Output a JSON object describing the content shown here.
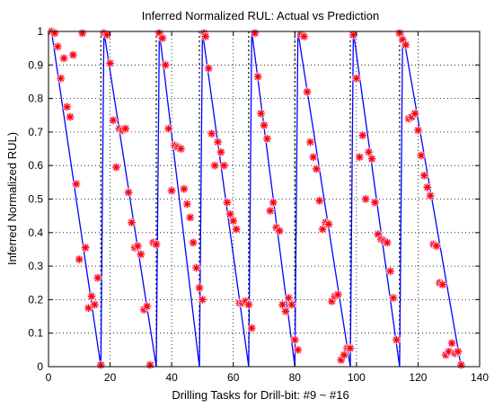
{
  "chart_data": {
    "type": "line",
    "title": "Inferred Normalized RUL: Actual vs Prediction",
    "xlabel": "Drilling Tasks for Drill-bit: #9 ~ #16",
    "ylabel": "Inferred Normalized RUL)",
    "xlim": [
      0,
      140
    ],
    "ylim": [
      0,
      1
    ],
    "x_ticks": [
      0,
      20,
      40,
      60,
      80,
      100,
      120,
      140
    ],
    "y_ticks": [
      0,
      0.1,
      0.2,
      0.3,
      0.4,
      0.5,
      0.6,
      0.7,
      0.8,
      0.9,
      1
    ],
    "grid": "dotted",
    "bit_boundaries": [
      17,
      35,
      49,
      65,
      80,
      98,
      114
    ],
    "colors": {
      "actual": "#0000ff",
      "prediction": "#ff0000",
      "halo": "#f2c4e6",
      "axis": "#000000"
    },
    "series": [
      {
        "role": "actual",
        "style": "blue-line",
        "x": [
          1,
          17,
          18,
          35,
          36,
          49,
          50,
          65,
          66,
          80,
          81,
          98,
          99,
          114,
          115,
          134
        ],
        "y": [
          1,
          0,
          1,
          0,
          1,
          0,
          1,
          0,
          1,
          0,
          1,
          0,
          1,
          0,
          1,
          0
        ]
      },
      {
        "role": "prediction",
        "style": "red-star",
        "points": [
          [
            1,
            1.0
          ],
          [
            2,
            0.995
          ],
          [
            3,
            0.955
          ],
          [
            4,
            0.86
          ],
          [
            5,
            0.92
          ],
          [
            6,
            0.775
          ],
          [
            7,
            0.745
          ],
          [
            8,
            0.93
          ],
          [
            9,
            0.545
          ],
          [
            10,
            0.32
          ],
          [
            11,
            0.995
          ],
          [
            12,
            0.355
          ],
          [
            13,
            0.175
          ],
          [
            14,
            0.21
          ],
          [
            15,
            0.185
          ],
          [
            16,
            0.265
          ],
          [
            17,
            0.005
          ],
          [
            18,
            0.995
          ],
          [
            19,
            0.99
          ],
          [
            20,
            0.905
          ],
          [
            21,
            0.735
          ],
          [
            22,
            0.595
          ],
          [
            23,
            0.71
          ],
          [
            24,
            0.705
          ],
          [
            25,
            0.71
          ],
          [
            26,
            0.52
          ],
          [
            27,
            0.43
          ],
          [
            28,
            0.355
          ],
          [
            29,
            0.36
          ],
          [
            30,
            0.335
          ],
          [
            31,
            0.17
          ],
          [
            32,
            0.18
          ],
          [
            33,
            0.005
          ],
          [
            34,
            0.37
          ],
          [
            35,
            0.365
          ],
          [
            36,
            0.995
          ],
          [
            37,
            0.98
          ],
          [
            38,
            0.9
          ],
          [
            39,
            0.71
          ],
          [
            40,
            0.525
          ],
          [
            41,
            0.66
          ],
          [
            42,
            0.655
          ],
          [
            43,
            0.65
          ],
          [
            44,
            0.53
          ],
          [
            45,
            0.485
          ],
          [
            46,
            0.445
          ],
          [
            47,
            0.37
          ],
          [
            48,
            0.295
          ],
          [
            49,
            0.235
          ],
          [
            50,
            0.2
          ],
          [
            50.5,
            0.995
          ],
          [
            51,
            0.985
          ],
          [
            52,
            0.89
          ],
          [
            53,
            0.695
          ],
          [
            54,
            0.6
          ],
          [
            55,
            0.67
          ],
          [
            56,
            0.64
          ],
          [
            57,
            0.6
          ],
          [
            58,
            0.49
          ],
          [
            59,
            0.455
          ],
          [
            60,
            0.435
          ],
          [
            61,
            0.41
          ],
          [
            62,
            0.19
          ],
          [
            63,
            0.19
          ],
          [
            64,
            0.195
          ],
          [
            65,
            0.185
          ],
          [
            66,
            0.115
          ],
          [
            67,
            0.995
          ],
          [
            68,
            0.865
          ],
          [
            69,
            0.755
          ],
          [
            70,
            0.72
          ],
          [
            71,
            0.68
          ],
          [
            72,
            0.465
          ],
          [
            73,
            0.49
          ],
          [
            74,
            0.415
          ],
          [
            75,
            0.405
          ],
          [
            76,
            0.185
          ],
          [
            77,
            0.165
          ],
          [
            78,
            0.205
          ],
          [
            79,
            0.185
          ],
          [
            80,
            0.08
          ],
          [
            81,
            0.05
          ],
          [
            82,
            0.99
          ],
          [
            83,
            0.985
          ],
          [
            84,
            0.82
          ],
          [
            85,
            0.67
          ],
          [
            86,
            0.625
          ],
          [
            87,
            0.59
          ],
          [
            88,
            0.495
          ],
          [
            89,
            0.41
          ],
          [
            90,
            0.43
          ],
          [
            91,
            0.425
          ],
          [
            92,
            0.195
          ],
          [
            93,
            0.21
          ],
          [
            94,
            0.215
          ],
          [
            95,
            0.02
          ],
          [
            96,
            0.035
          ],
          [
            97,
            0.055
          ],
          [
            98,
            0.055
          ],
          [
            99,
            0.99
          ],
          [
            100,
            0.86
          ],
          [
            101,
            0.625
          ],
          [
            102,
            0.69
          ],
          [
            103,
            0.5
          ],
          [
            104,
            0.64
          ],
          [
            105,
            0.62
          ],
          [
            106,
            0.49
          ],
          [
            107,
            0.395
          ],
          [
            108,
            0.38
          ],
          [
            109,
            0.375
          ],
          [
            110,
            0.37
          ],
          [
            111,
            0.285
          ],
          [
            112,
            0.205
          ],
          [
            113,
            0.08
          ],
          [
            114,
            0.995
          ],
          [
            115,
            0.975
          ],
          [
            116,
            0.96
          ],
          [
            117,
            0.74
          ],
          [
            118,
            0.745
          ],
          [
            119,
            0.755
          ],
          [
            120,
            0.705
          ],
          [
            121,
            0.63
          ],
          [
            122,
            0.57
          ],
          [
            123,
            0.535
          ],
          [
            124,
            0.51
          ],
          [
            125,
            0.365
          ],
          [
            126,
            0.36
          ],
          [
            127,
            0.25
          ],
          [
            128,
            0.245
          ],
          [
            129,
            0.035
          ],
          [
            130,
            0.045
          ],
          [
            131,
            0.07
          ],
          [
            132,
            0.04
          ],
          [
            133,
            0.045
          ],
          [
            134,
            0.005
          ]
        ]
      }
    ]
  }
}
